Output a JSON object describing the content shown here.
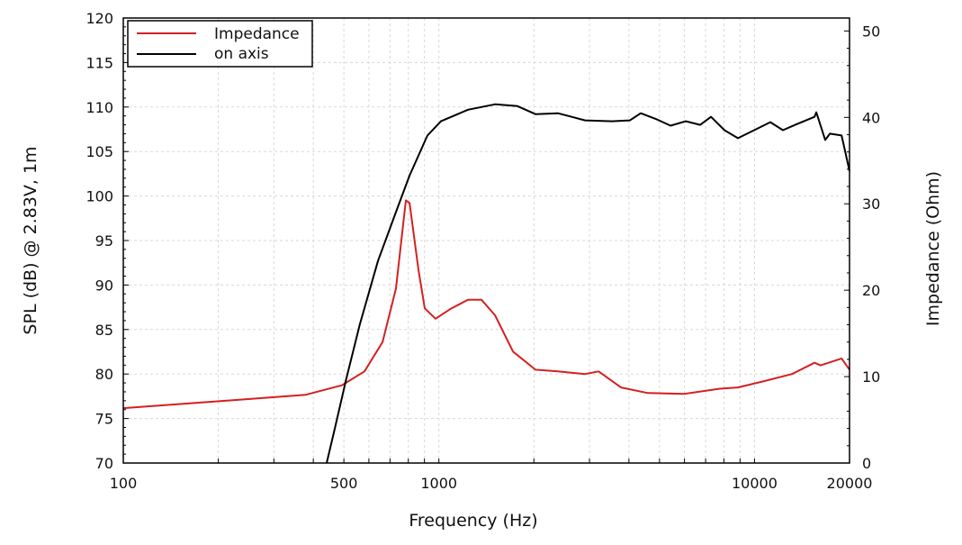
{
  "chart_data": {
    "type": "line",
    "title": "",
    "xlabel": "Frequency (Hz)",
    "ylabel": "SPL (dB) @ 2.83V, 1m",
    "y2label": "Impedance (Ohm)",
    "xscale": "log",
    "xlim": [
      100,
      20000
    ],
    "ylim": [
      70,
      120
    ],
    "y2lim": [
      0,
      51.5
    ],
    "x_ticks": [
      100,
      500,
      1000,
      10000,
      20000
    ],
    "x_tick_labels": [
      "100",
      "500",
      "1000",
      "10000",
      "20000"
    ],
    "y_ticks": [
      70,
      75,
      80,
      85,
      90,
      95,
      100,
      105,
      110,
      115,
      120
    ],
    "y_tick_labels": [
      "70",
      "75",
      "80",
      "85",
      "90",
      "95",
      "100",
      "105",
      "110",
      "115",
      "120"
    ],
    "y2_ticks": [
      0,
      10,
      20,
      30,
      40,
      50
    ],
    "y2_tick_labels": [
      "0",
      "10",
      "20",
      "30",
      "40",
      "50"
    ],
    "grid": true,
    "legend": {
      "placement": "top-left",
      "entries": [
        "Impedance",
        "on axis"
      ]
    },
    "series": [
      {
        "name": "Impedance",
        "axis": "right",
        "color": "#d42020",
        "x": [
          100,
          210,
          379,
          493,
          581,
          663,
          731,
          786,
          807,
          862,
          902,
          976,
          1084,
          1236,
          1364,
          1506,
          1718,
          2023,
          2384,
          2904,
          3206,
          3776,
          4590,
          5970,
          7760,
          8860,
          10790,
          13150,
          15490,
          16200,
          18880,
          20000
        ],
        "y": [
          6.35,
          7.2,
          7.9,
          9.0,
          10.6,
          14.0,
          20.2,
          30.4,
          30.1,
          22.3,
          17.9,
          16.7,
          17.8,
          18.9,
          18.9,
          17.1,
          12.9,
          10.8,
          10.6,
          10.3,
          10.6,
          8.75,
          8.1,
          8.0,
          8.6,
          8.75,
          9.5,
          10.3,
          11.6,
          11.3,
          12.1,
          10.8
        ]
      },
      {
        "name": "on axis",
        "axis": "left",
        "color": "#000000",
        "x": [
          441,
          468,
          509,
          562,
          641,
          731,
          807,
          920,
          1015,
          1236,
          1506,
          1774,
          2023,
          2384,
          2904,
          3533,
          4030,
          4360,
          4910,
          5420,
          6060,
          6730,
          7280,
          8030,
          8860,
          9980,
          11220,
          12300,
          13670,
          15490,
          15700,
          16200,
          16750,
          17330,
          18880,
          20000
        ],
        "y": [
          70,
          73.9,
          79.5,
          85.6,
          92.7,
          98.2,
          102.3,
          106.8,
          108.4,
          109.7,
          110.3,
          110.1,
          109.2,
          109.3,
          108.5,
          108.4,
          108.5,
          109.3,
          108.6,
          107.9,
          108.4,
          108.0,
          108.9,
          107.4,
          106.5,
          107.4,
          108.3,
          107.4,
          108.1,
          108.9,
          109.4,
          107.9,
          106.3,
          107.0,
          106.8,
          102.8
        ]
      }
    ]
  }
}
